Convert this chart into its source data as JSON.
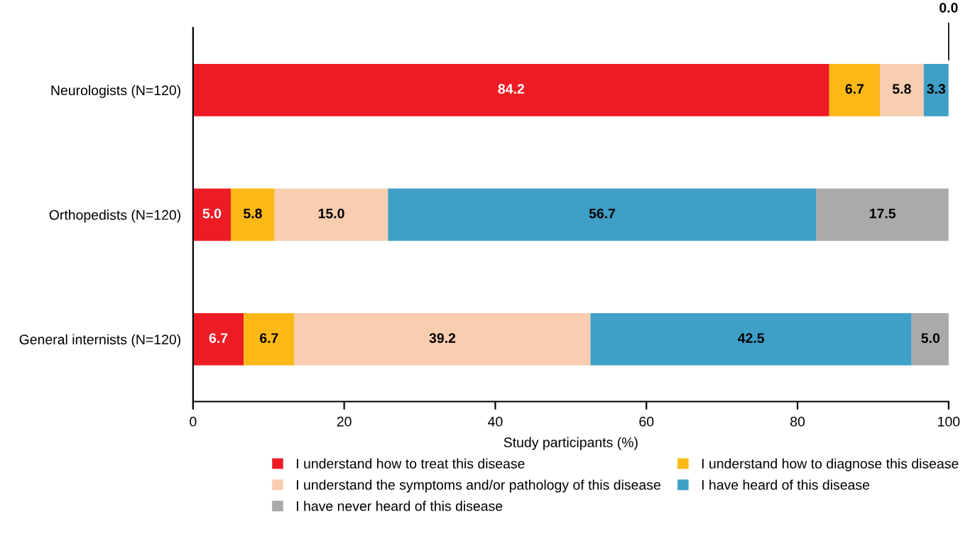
{
  "chart_data": {
    "type": "bar",
    "orientation": "horizontal",
    "stacked": true,
    "categories": [
      "Neurologists (N=120)",
      "Orthopedists (N=120)",
      "General internists (N=120)"
    ],
    "series": [
      {
        "name": "I understand how to treat this disease",
        "color": "#ed1c24",
        "values": [
          84.2,
          5.0,
          6.7
        ]
      },
      {
        "name": "I understand how to diagnose this disease",
        "color": "#fbb817",
        "values": [
          6.7,
          5.8,
          6.7
        ]
      },
      {
        "name": "I understand the symptoms and/or pathology of this disease",
        "color": "#f8cdb0",
        "values": [
          5.8,
          15.0,
          39.2
        ]
      },
      {
        "name": "I have heard of this disease",
        "color": "#3f9fc6",
        "values": [
          3.3,
          56.7,
          42.5
        ]
      },
      {
        "name": "I have never heard of this disease",
        "color": "#aba9a9",
        "values": [
          0.0,
          17.5,
          5.0
        ]
      }
    ],
    "value_labels": [
      [
        "84.2",
        "5.0",
        "6.7"
      ],
      [
        "6.7",
        "5.8",
        "6.7"
      ],
      [
        "5.8",
        "15.0",
        "39.2"
      ],
      [
        "3.3",
        "56.7",
        "42.5"
      ],
      [
        "0.0",
        "17.5",
        "5.0"
      ]
    ],
    "xlim": [
      0,
      100
    ],
    "xticks": [
      0,
      20,
      40,
      60,
      80,
      100
    ],
    "xlabel": "Study participants (%)",
    "legend": "bottom",
    "grid": false
  }
}
